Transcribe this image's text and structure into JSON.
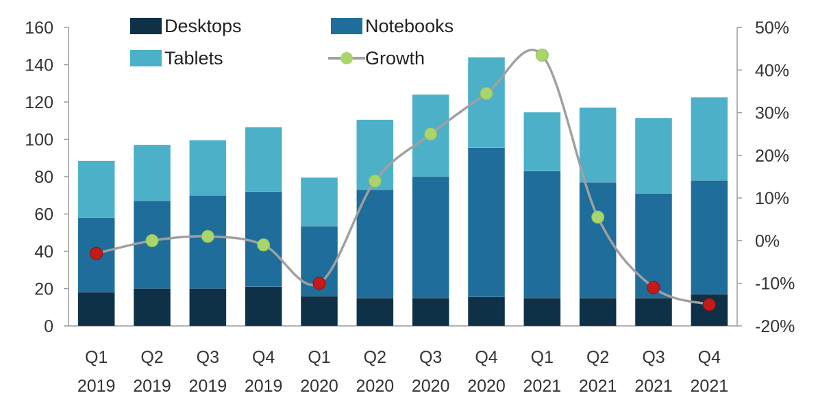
{
  "chart_data": {
    "type": "bar",
    "stacked": true,
    "categories": [
      [
        "Q1",
        "2019"
      ],
      [
        "Q2",
        "2019"
      ],
      [
        "Q3",
        "2019"
      ],
      [
        "Q4",
        "2019"
      ],
      [
        "Q1",
        "2020"
      ],
      [
        "Q2",
        "2020"
      ],
      [
        "Q3",
        "2020"
      ],
      [
        "Q4",
        "2020"
      ],
      [
        "Q1",
        "2021"
      ],
      [
        "Q2",
        "2021"
      ],
      [
        "Q3",
        "2021"
      ],
      [
        "Q4",
        "2021"
      ]
    ],
    "series": [
      {
        "name": "Desktops",
        "axis": "left",
        "color": "#0f3147",
        "values": [
          18,
          20,
          20,
          21,
          16,
          15,
          15,
          15.5,
          15,
          15,
          15,
          17
        ]
      },
      {
        "name": "Notebooks",
        "axis": "left",
        "color": "#1f6d9a",
        "values": [
          40,
          47,
          50,
          51,
          37.5,
          58,
          65,
          80,
          68,
          62,
          56,
          61
        ]
      },
      {
        "name": "Tablets",
        "axis": "left",
        "color": "#4cb0c9",
        "values": [
          30.5,
          30,
          29.5,
          34.5,
          26,
          37.5,
          44,
          48.5,
          31.5,
          40,
          40.5,
          44.5
        ]
      },
      {
        "name": "Growth",
        "type": "line",
        "axis": "right",
        "color": "#a0a0a0",
        "marker_color": "#a9d46e",
        "negative_marker_color": "#c41a1a",
        "values": [
          -3,
          0,
          1,
          -1,
          -10,
          14,
          25,
          34.5,
          43.5,
          5.5,
          -11,
          -15
        ]
      }
    ],
    "yaxis_left": {
      "min": 0,
      "max": 160,
      "ticks": [
        "0",
        "20",
        "40",
        "60",
        "80",
        "100",
        "120",
        "140",
        "160"
      ]
    },
    "yaxis_right": {
      "min": -20,
      "max": 50,
      "ticks": [
        "-20%",
        "-10%",
        "0%",
        "10%",
        "20%",
        "30%",
        "40%",
        "50%"
      ]
    },
    "legend": {
      "placement": "top",
      "items": [
        {
          "label": "Desktops",
          "kind": "box",
          "color": "#0f3147"
        },
        {
          "label": "Notebooks",
          "kind": "box",
          "color": "#1f6d9a"
        },
        {
          "label": "Tablets",
          "kind": "box",
          "color": "#4cb0c9"
        },
        {
          "label": "Growth",
          "kind": "line",
          "color": "#a0a0a0",
          "marker_color": "#a9d46e"
        }
      ]
    },
    "grid": false
  }
}
